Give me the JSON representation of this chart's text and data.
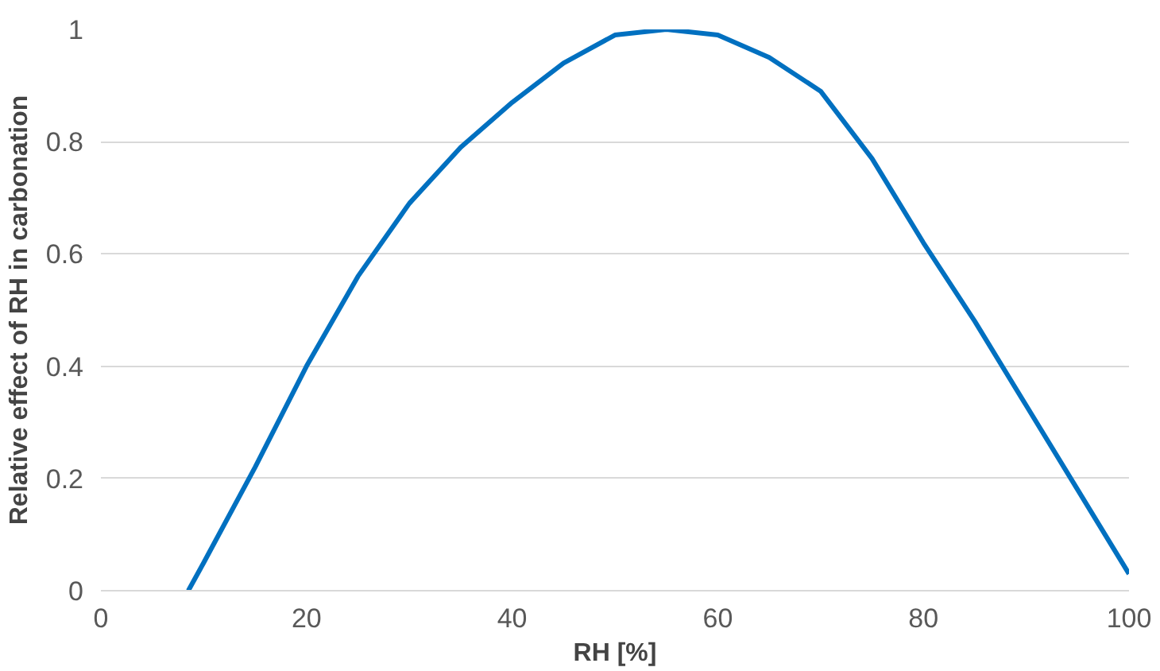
{
  "chart_data": {
    "type": "line",
    "xlabel": "RH [%]",
    "ylabel": "Relative effect of RH in carbonation",
    "x": [
      8.5,
      10,
      15,
      20,
      25,
      30,
      35,
      40,
      45,
      50,
      55,
      60,
      65,
      70,
      75,
      80,
      85,
      90,
      95,
      100
    ],
    "series": [
      {
        "color": "#0070c0",
        "values": [
          0,
          0.05,
          0.22,
          0.4,
          0.56,
          0.69,
          0.79,
          0.87,
          0.94,
          0.99,
          1.0,
          0.99,
          0.95,
          0.89,
          0.77,
          0.62,
          0.48,
          0.33,
          0.18,
          0.03
        ]
      }
    ],
    "xlim": [
      0,
      100
    ],
    "ylim": [
      0,
      1
    ],
    "xticks": [
      0,
      20,
      40,
      60,
      80,
      100
    ],
    "yticks": [
      0,
      0.2,
      0.4,
      0.6,
      0.8,
      1
    ],
    "grid": "y",
    "marker": "none",
    "line_style": "solid"
  }
}
